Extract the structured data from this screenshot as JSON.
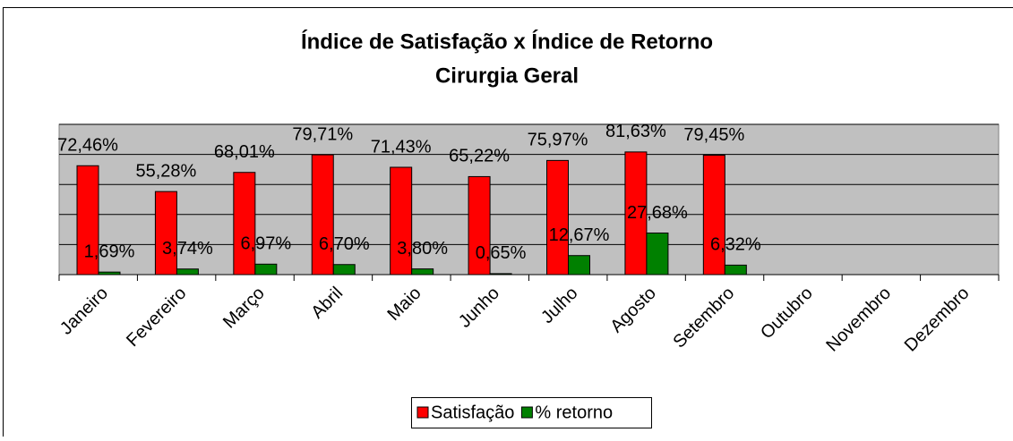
{
  "chart_data": {
    "type": "bar",
    "title": "Índice de Satisfação x Índice de Retorno",
    "subtitle": "Cirurgia Geral",
    "categories": [
      "Janeiro",
      "Fevereiro",
      "Março",
      "Abril",
      "Maio",
      "Junho",
      "Julho",
      "Agosto",
      "Setembro",
      "Outubro",
      "Novembro",
      "Dezembro"
    ],
    "series": [
      {
        "name": "Satisfação",
        "color": "#ff0000",
        "values": [
          72.46,
          55.28,
          68.01,
          79.71,
          71.43,
          65.22,
          75.97,
          81.63,
          79.45,
          null,
          null,
          null
        ],
        "value_labels": [
          "72,46%",
          "55,28%",
          "68,01%",
          "79,71%",
          "71,43%",
          "65,22%",
          "75,97%",
          "81,63%",
          "79,45%",
          null,
          null,
          null
        ]
      },
      {
        "name": "% retorno",
        "color": "#008000",
        "values": [
          1.69,
          3.74,
          6.97,
          6.7,
          3.8,
          0.65,
          12.67,
          27.68,
          6.32,
          null,
          null,
          null
        ],
        "value_labels": [
          "1,69%",
          "3,74%",
          "6,97%",
          "6,70%",
          "3,80%",
          "0,65%",
          "12,67%",
          "27,68%",
          "6,32%",
          null,
          null,
          null
        ]
      }
    ],
    "ylim": [
      0,
      100
    ],
    "yticks": [
      0,
      20,
      40,
      60,
      80,
      100
    ],
    "grid": true,
    "legend": "bottom"
  }
}
